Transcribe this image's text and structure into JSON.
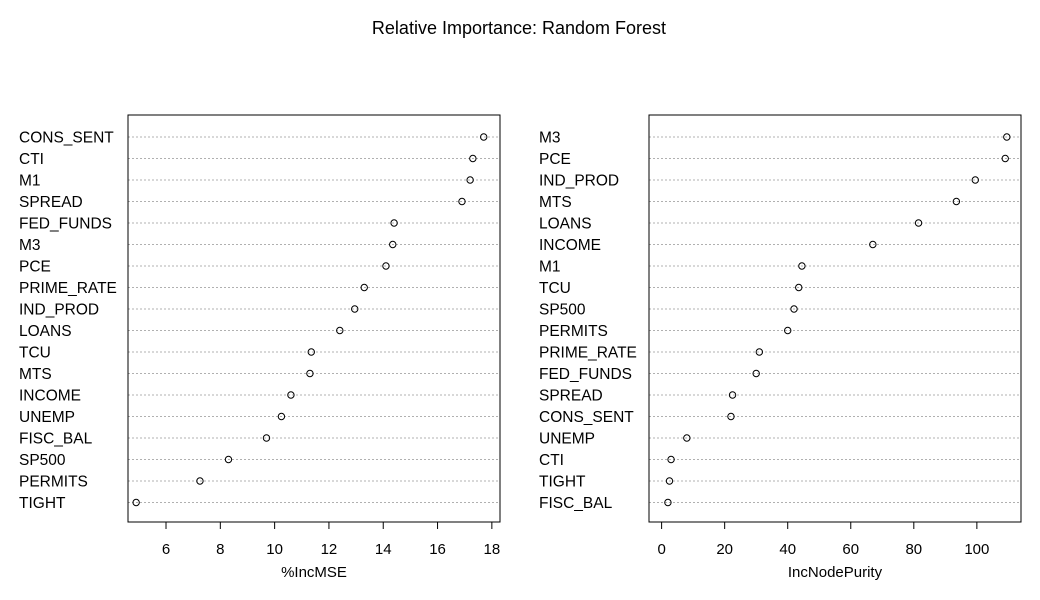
{
  "chart_data": [
    {
      "type": "scatter",
      "title": "Relative Importance: Random Forest",
      "xlabel": "%IncMSE",
      "xlim": [
        4.6,
        18.3
      ],
      "xticks": [
        6,
        8,
        10,
        12,
        14,
        16,
        18
      ],
      "categories": [
        "CONS_SENT",
        "CTI",
        "M1",
        "SPREAD",
        "FED_FUNDS",
        "M3",
        "PCE",
        "PRIME_RATE",
        "IND_PROD",
        "LOANS",
        "TCU",
        "MTS",
        "INCOME",
        "UNEMP",
        "FISC_BAL",
        "SP500",
        "PERMITS",
        "TIGHT"
      ],
      "values": [
        17.7,
        17.3,
        17.2,
        16.9,
        14.4,
        14.35,
        14.1,
        13.3,
        12.95,
        12.4,
        11.35,
        11.3,
        10.6,
        10.25,
        9.7,
        8.3,
        7.25,
        4.9
      ]
    },
    {
      "type": "scatter",
      "xlabel": "IncNodePurity",
      "xlim": [
        -4,
        114
      ],
      "xticks": [
        0,
        20,
        40,
        60,
        80,
        100
      ],
      "categories": [
        "M3",
        "PCE",
        "IND_PROD",
        "MTS",
        "LOANS",
        "INCOME",
        "M1",
        "TCU",
        "SP500",
        "PERMITS",
        "PRIME_RATE",
        "FED_FUNDS",
        "SPREAD",
        "CONS_SENT",
        "UNEMP",
        "CTI",
        "TIGHT",
        "FISC_BAL"
      ],
      "values": [
        109.5,
        109,
        99.5,
        93.5,
        81.5,
        67,
        44.5,
        43.5,
        42,
        40,
        31,
        30,
        22.5,
        22,
        8,
        3,
        2.5,
        2
      ]
    }
  ]
}
